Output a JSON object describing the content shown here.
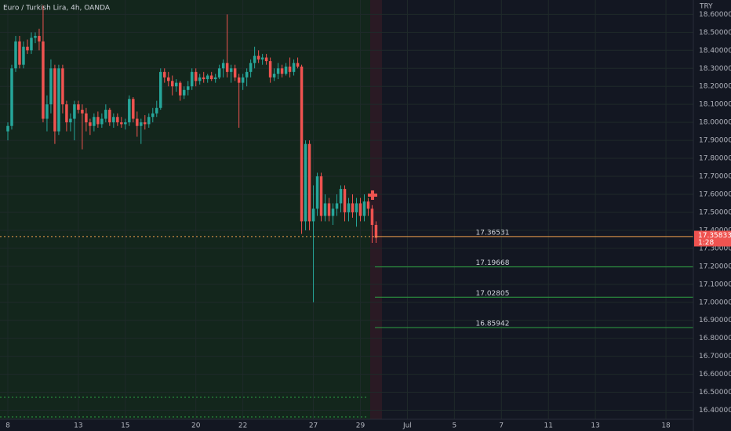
{
  "chart_data": {
    "type": "candlestick",
    "title": "Euro / Turkish Lira, 4h, OANDA",
    "currency": "TRY",
    "up_color": "#26a69a",
    "down_color": "#ef5350",
    "ylim": [
      16.35,
      18.68
    ],
    "yticks": [
      {
        "value": 16.4,
        "label": "16.40000"
      },
      {
        "value": 16.5,
        "label": "16.50000"
      },
      {
        "value": 16.6,
        "label": "16.60000"
      },
      {
        "value": 16.7,
        "label": "16.70000"
      },
      {
        "value": 16.8,
        "label": "16.80000"
      },
      {
        "value": 16.9,
        "label": "16.90000"
      },
      {
        "value": 17.0,
        "label": "17.00000"
      },
      {
        "value": 17.1,
        "label": "17.10000"
      },
      {
        "value": 17.2,
        "label": "17.20000"
      },
      {
        "value": 17.3,
        "label": "17.30000"
      },
      {
        "value": 17.4,
        "label": "17.40000"
      },
      {
        "value": 17.5,
        "label": "17.50000"
      },
      {
        "value": 17.6,
        "label": "17.60000"
      },
      {
        "value": 17.7,
        "label": "17.70000"
      },
      {
        "value": 17.8,
        "label": "17.80000"
      },
      {
        "value": 17.9,
        "label": "17.90000"
      },
      {
        "value": 18.0,
        "label": "18.00000"
      },
      {
        "value": 18.1,
        "label": "18.10000"
      },
      {
        "value": 18.2,
        "label": "18.20000"
      },
      {
        "value": 18.3,
        "label": "18.30000"
      },
      {
        "value": 18.4,
        "label": "18.40000"
      },
      {
        "value": 18.5,
        "label": "18.50000"
      },
      {
        "value": 18.6,
        "label": "18.60000"
      }
    ],
    "xlim": [
      -2,
      175
    ],
    "xticks": [
      {
        "value": 0,
        "label": "8"
      },
      {
        "value": 18,
        "label": "13"
      },
      {
        "value": 30,
        "label": "15"
      },
      {
        "value": 48,
        "label": "20"
      },
      {
        "value": 60,
        "label": "22"
      },
      {
        "value": 78,
        "label": "27"
      },
      {
        "value": 90,
        "label": "29"
      },
      {
        "value": 102,
        "label": "Jul"
      },
      {
        "value": 114,
        "label": "5"
      },
      {
        "value": 126,
        "label": "7"
      },
      {
        "value": 138,
        "label": "11"
      },
      {
        "value": 150,
        "label": "13"
      },
      {
        "value": 168,
        "label": "18"
      }
    ],
    "grid": true,
    "candles": [
      [
        17.95,
        18.0,
        17.9,
        17.98
      ],
      [
        17.98,
        18.32,
        17.96,
        18.3
      ],
      [
        18.3,
        18.48,
        18.28,
        18.45
      ],
      [
        18.45,
        18.48,
        18.3,
        18.32
      ],
      [
        18.32,
        18.45,
        18.3,
        18.42
      ],
      [
        18.42,
        18.46,
        18.38,
        18.4
      ],
      [
        18.4,
        18.5,
        18.38,
        18.47
      ],
      [
        18.47,
        18.5,
        18.44,
        18.48
      ],
      [
        18.48,
        18.52,
        18.4,
        18.45
      ],
      [
        18.45,
        18.65,
        18.0,
        18.02
      ],
      [
        18.02,
        18.15,
        17.95,
        18.1
      ],
      [
        18.1,
        18.35,
        18.05,
        18.3
      ],
      [
        18.3,
        18.32,
        17.88,
        17.95
      ],
      [
        17.95,
        18.32,
        17.93,
        18.3
      ],
      [
        18.3,
        18.32,
        18.05,
        18.1
      ],
      [
        18.1,
        18.12,
        17.95,
        18.0
      ],
      [
        18.0,
        18.05,
        17.95,
        18.02
      ],
      [
        18.02,
        18.12,
        17.9,
        18.1
      ],
      [
        18.1,
        18.12,
        18.05,
        18.07
      ],
      [
        18.07,
        18.1,
        17.85,
        18.05
      ],
      [
        18.05,
        18.08,
        17.95,
        18.0
      ],
      [
        18.0,
        18.02,
        17.93,
        17.98
      ],
      [
        17.98,
        18.05,
        17.95,
        18.03
      ],
      [
        18.03,
        18.06,
        17.97,
        17.99
      ],
      [
        17.99,
        18.05,
        17.97,
        18.02
      ],
      [
        18.02,
        18.1,
        18.0,
        18.07
      ],
      [
        18.07,
        18.08,
        17.98,
        18.0
      ],
      [
        18.0,
        18.05,
        17.97,
        18.03
      ],
      [
        18.03,
        18.05,
        17.98,
        18.0
      ],
      [
        18.0,
        18.03,
        17.97,
        17.99
      ],
      [
        17.99,
        18.02,
        17.96,
        18.0
      ],
      [
        18.0,
        18.15,
        17.98,
        18.13
      ],
      [
        18.13,
        18.14,
        18.0,
        18.02
      ],
      [
        18.02,
        18.06,
        17.92,
        17.98
      ],
      [
        17.98,
        18.02,
        17.88,
        18.0
      ],
      [
        18.0,
        18.04,
        17.96,
        17.99
      ],
      [
        17.99,
        18.05,
        17.97,
        18.03
      ],
      [
        18.03,
        18.08,
        18.0,
        18.05
      ],
      [
        18.05,
        18.12,
        18.03,
        18.08
      ],
      [
        18.08,
        18.3,
        18.07,
        18.28
      ],
      [
        18.28,
        18.3,
        18.22,
        18.25
      ],
      [
        18.25,
        18.28,
        18.2,
        18.23
      ],
      [
        18.23,
        18.26,
        18.15,
        18.2
      ],
      [
        18.2,
        18.24,
        18.17,
        18.22
      ],
      [
        18.22,
        18.23,
        18.12,
        18.15
      ],
      [
        18.15,
        18.2,
        18.13,
        18.18
      ],
      [
        18.18,
        18.23,
        18.15,
        18.2
      ],
      [
        18.2,
        18.3,
        18.18,
        18.28
      ],
      [
        18.28,
        18.3,
        18.2,
        18.23
      ],
      [
        18.23,
        18.27,
        18.21,
        18.25
      ],
      [
        18.25,
        18.28,
        18.22,
        18.24
      ],
      [
        18.24,
        18.27,
        18.22,
        18.26
      ],
      [
        18.26,
        18.28,
        18.23,
        18.24
      ],
      [
        18.24,
        18.27,
        18.22,
        18.25
      ],
      [
        18.25,
        18.32,
        18.24,
        18.3
      ],
      [
        18.3,
        18.35,
        18.25,
        18.33
      ],
      [
        18.33,
        18.6,
        18.25,
        18.28
      ],
      [
        18.28,
        18.32,
        18.22,
        18.3
      ],
      [
        18.3,
        18.32,
        18.23,
        18.25
      ],
      [
        18.25,
        18.27,
        17.97,
        18.22
      ],
      [
        18.22,
        18.27,
        18.18,
        18.25
      ],
      [
        18.25,
        18.3,
        18.2,
        18.28
      ],
      [
        18.28,
        18.35,
        18.25,
        18.33
      ],
      [
        18.33,
        18.42,
        18.3,
        18.37
      ],
      [
        18.37,
        18.4,
        18.33,
        18.35
      ],
      [
        18.35,
        18.38,
        18.32,
        18.36
      ],
      [
        18.36,
        18.38,
        18.32,
        18.34
      ],
      [
        18.34,
        18.36,
        18.22,
        18.25
      ],
      [
        18.25,
        18.3,
        18.23,
        18.27
      ],
      [
        18.27,
        18.33,
        18.24,
        18.3
      ],
      [
        18.3,
        18.32,
        18.25,
        18.27
      ],
      [
        18.27,
        18.33,
        18.26,
        18.31
      ],
      [
        18.31,
        18.36,
        18.25,
        18.28
      ],
      [
        18.28,
        18.35,
        18.26,
        18.33
      ],
      [
        18.33,
        18.36,
        18.3,
        18.31
      ],
      [
        18.31,
        18.32,
        17.38,
        17.45
      ],
      [
        17.45,
        17.9,
        17.4,
        17.88
      ],
      [
        17.88,
        17.9,
        17.4,
        17.45
      ],
      [
        17.45,
        17.65,
        17.0,
        17.52
      ],
      [
        17.52,
        17.72,
        17.48,
        17.7
      ],
      [
        17.7,
        17.72,
        17.45,
        17.48
      ],
      [
        17.48,
        17.6,
        17.45,
        17.55
      ],
      [
        17.55,
        17.58,
        17.45,
        17.48
      ],
      [
        17.48,
        17.55,
        17.43,
        17.52
      ],
      [
        17.52,
        17.6,
        17.48,
        17.55
      ],
      [
        17.55,
        17.65,
        17.5,
        17.63
      ],
      [
        17.63,
        17.65,
        17.45,
        17.5
      ],
      [
        17.5,
        17.58,
        17.45,
        17.55
      ],
      [
        17.55,
        17.6,
        17.47,
        17.5
      ],
      [
        17.5,
        17.58,
        17.42,
        17.55
      ],
      [
        17.55,
        17.58,
        17.45,
        17.48
      ],
      [
        17.48,
        17.6,
        17.45,
        17.56
      ],
      [
        17.56,
        17.58,
        17.48,
        17.52
      ],
      [
        17.52,
        17.54,
        17.33,
        17.43
      ],
      [
        17.43,
        17.45,
        17.33,
        17.35833
      ]
    ],
    "levels": [
      {
        "value": 17.36531,
        "label": "17.36531",
        "color": "#f0a04b"
      },
      {
        "value": 17.19668,
        "label": "17.19668",
        "color": "#2ea043"
      },
      {
        "value": 17.02805,
        "label": "17.02805",
        "color": "#2ea043"
      },
      {
        "value": 16.85942,
        "label": "16.85942",
        "color": "#2ea043"
      }
    ],
    "last_price": {
      "value": 17.35833,
      "countdown": "1:28",
      "color": "#ef5350"
    }
  }
}
